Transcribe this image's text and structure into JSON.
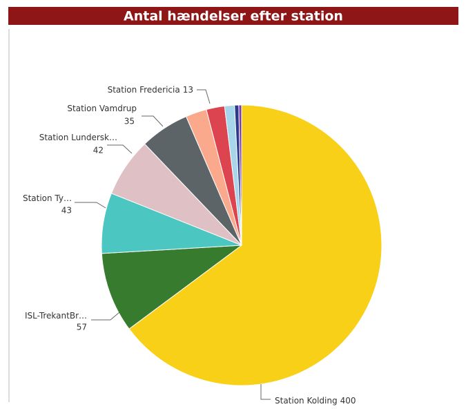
{
  "chart_data": {
    "type": "pie",
    "title": "Antal hændelser efter station",
    "categories": [
      "Station Kolding",
      "ISL-TrekantBr…",
      "Station Ty…",
      "Station Lundersk…",
      "Station Vamdrup",
      null,
      "Station Fredericia",
      null,
      null,
      null
    ],
    "values": [
      400,
      57,
      43,
      42,
      35,
      15,
      13,
      7,
      3,
      2
    ],
    "colors": [
      "#f9d018",
      "#367b2e",
      "#4bc6c0",
      "#dfc0c4",
      "#5d6467",
      "#fba98c",
      "#dc4450",
      "#a7d6ea",
      "#2d3a8c",
      "#7c3aa8"
    ]
  }
}
